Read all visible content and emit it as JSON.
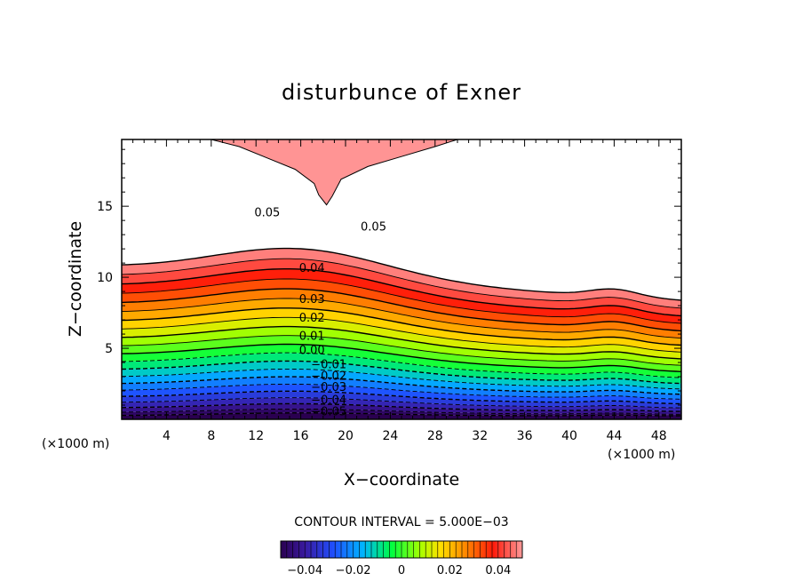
{
  "chart_data": {
    "type": "contour",
    "title": "disturbunce of Exner",
    "xlabel": "X−coordinate",
    "ylabel": "Z−coordinate",
    "x_unit": "(×1000 m)",
    "x_unit_right": "(×1000 m)",
    "xlim": [
      0,
      50
    ],
    "ylim": [
      0,
      19.7
    ],
    "x_ticks": [
      4,
      8,
      12,
      16,
      20,
      24,
      28,
      32,
      36,
      40,
      44,
      48
    ],
    "y_ticks": [
      5,
      10,
      15
    ],
    "contour_interval_label": "CONTOUR INTERVAL = 5.000E−03",
    "contour_interval": 0.005,
    "value_range": [
      -0.05,
      0.05
    ],
    "colorbar_ticks": [
      "−0.04",
      "−0.02",
      "0",
      "0.02",
      "0.04"
    ],
    "colorbar_tick_values": [
      -0.04,
      -0.02,
      0,
      0.02,
      0.04
    ],
    "colormap": "rainbow (purple → blue → green → yellow → red → pink)",
    "negative_contours": "dashed",
    "region_above_0.05": "white (unfilled)",
    "contour_labels": [
      {
        "text": "0.05",
        "x": 13.0,
        "z": 14.6
      },
      {
        "text": "0.05",
        "x": 22.5,
        "z": 13.6
      },
      {
        "text": "0.04",
        "x": 17.0,
        "z": 10.7
      },
      {
        "text": "0.03",
        "x": 17.0,
        "z": 8.5
      },
      {
        "text": "0.02",
        "x": 17.0,
        "z": 7.2
      },
      {
        "text": "0.01",
        "x": 17.0,
        "z": 5.9
      },
      {
        "text": "0.00",
        "x": 17.0,
        "z": 4.9
      },
      {
        "text": "−0.01",
        "x": 18.5,
        "z": 3.9
      },
      {
        "text": "−0.02",
        "x": 18.5,
        "z": 3.1
      },
      {
        "text": "−0.03",
        "x": 18.5,
        "z": 2.3
      },
      {
        "text": "−0.04",
        "x": 18.5,
        "z": 1.4
      },
      {
        "text": "−0.05",
        "x": 18.5,
        "z": 0.6
      }
    ]
  }
}
